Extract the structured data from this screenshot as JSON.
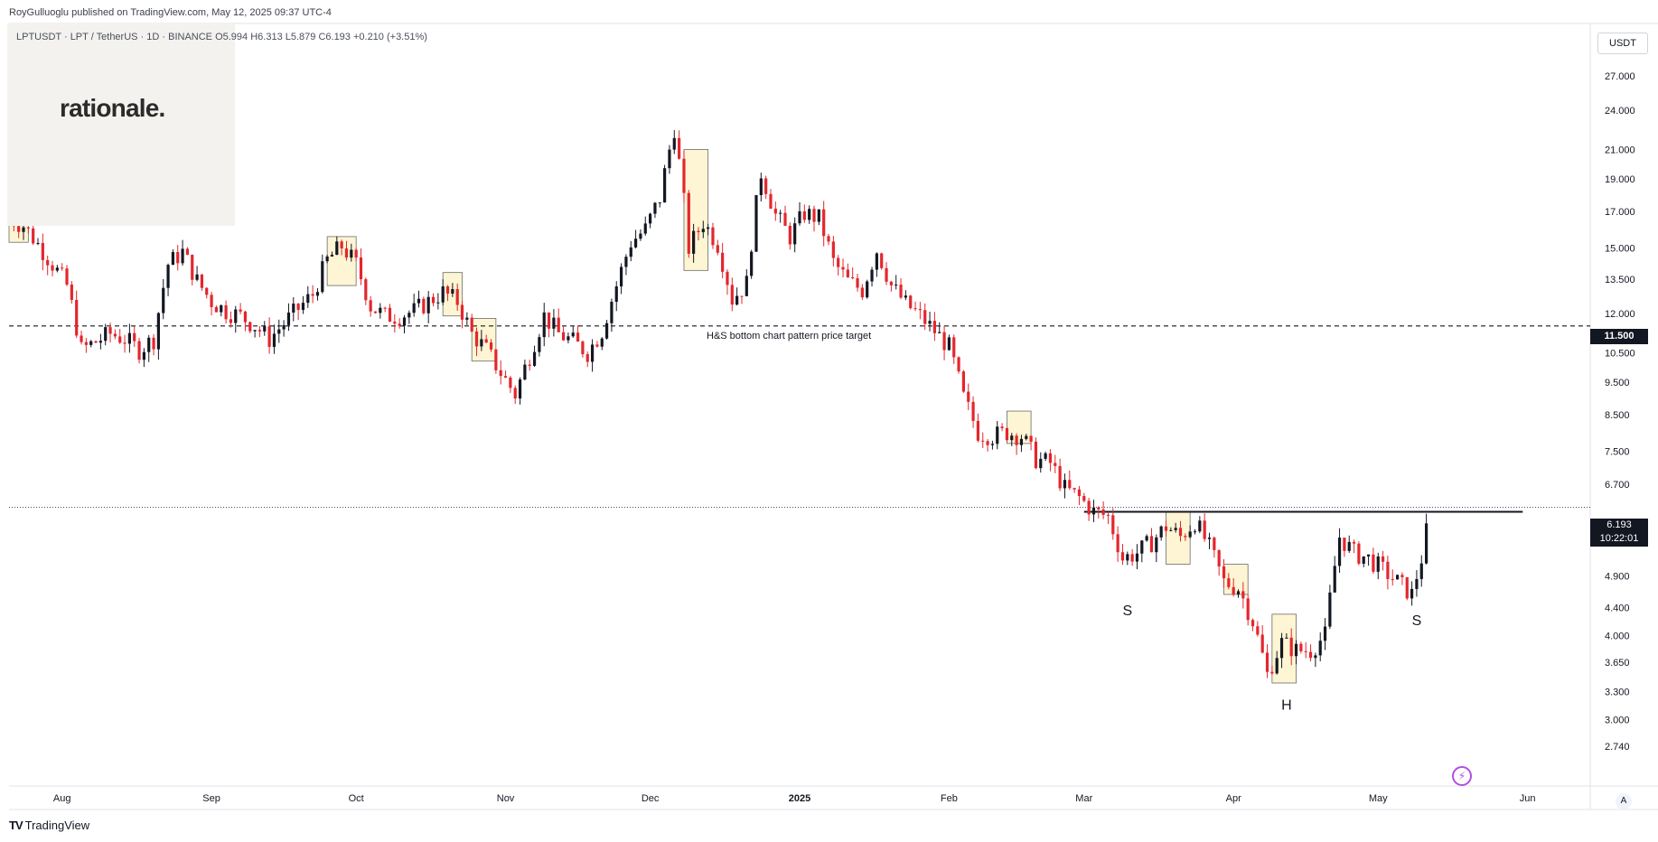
{
  "header": {
    "published_line": "RoyGulluoglu published on TradingView.com, May 12, 2025 09:37 UTC-4",
    "symbol": "LPTUSDT · LPT / TetherUS · 1D · BINANCE",
    "ohlc": "O5.994  H6.313  L5.879  C6.193  +0.210 (+3.51%)"
  },
  "watermark": {
    "logo_text": "rationale."
  },
  "scale": {
    "currency_label": "USDT",
    "settings_label": "A"
  },
  "footer": {
    "brand": "TradingView",
    "brand_mark": "TV"
  },
  "badges": {
    "last_price": "6.193",
    "countdown": "10:22:01",
    "target_price": "11.500"
  },
  "colors": {
    "up": "#131722",
    "down": "#e4262d",
    "highlight": "#fdf5d3",
    "grid_text": "#131722"
  },
  "chart_data": {
    "type": "candlestick",
    "title": "",
    "scale": "log",
    "ylim": [
      2.74,
      28.5
    ],
    "y_ticks": [
      "27.000",
      "24.000",
      "21.000",
      "19.000",
      "17.000",
      "15.000",
      "13.500",
      "12.000",
      "10.500",
      "9.500",
      "8.500",
      "7.500",
      "6.700",
      "5.500",
      "4.900",
      "4.400",
      "4.000",
      "3.650",
      "3.300",
      "3.000",
      "2.740"
    ],
    "x_ticks": [
      "Aug",
      "Sep",
      "Oct",
      "Nov",
      "Dec",
      "2025",
      "Feb",
      "Mar",
      "Apr",
      "May",
      "Jun"
    ],
    "x_tick_dates": [
      "2024-08-01",
      "2024-09-01",
      "2024-10-01",
      "2024-11-01",
      "2024-12-01",
      "2025-01-01",
      "2025-02-01",
      "2025-03-01",
      "2025-04-01",
      "2025-05-01",
      "2025-06-01"
    ],
    "x_start": "2024-07-21",
    "x_end": "2025-06-14",
    "series": [
      {
        "label": "Daily close",
        "points": [
          [
            "2024-07-21",
            16.6
          ],
          [
            "2024-07-24",
            16.2
          ],
          [
            "2024-07-27",
            15.2
          ],
          [
            "2024-07-30",
            14.2
          ],
          [
            "2024-08-02",
            13.2
          ],
          [
            "2024-08-05",
            10.6
          ],
          [
            "2024-08-08",
            10.9
          ],
          [
            "2024-08-11",
            11.2
          ],
          [
            "2024-08-14",
            11.0
          ],
          [
            "2024-08-17",
            10.6
          ],
          [
            "2024-08-20",
            11.0
          ],
          [
            "2024-08-23",
            14.2
          ],
          [
            "2024-08-26",
            14.8
          ],
          [
            "2024-08-29",
            13.4
          ],
          [
            "2024-09-01",
            12.5
          ],
          [
            "2024-09-04",
            12.1
          ],
          [
            "2024-09-07",
            11.9
          ],
          [
            "2024-09-10",
            11.5
          ],
          [
            "2024-09-13",
            11.0
          ],
          [
            "2024-09-16",
            11.6
          ],
          [
            "2024-09-19",
            12.2
          ],
          [
            "2024-09-22",
            12.8
          ],
          [
            "2024-09-25",
            14.4
          ],
          [
            "2024-09-28",
            15.1
          ],
          [
            "2024-10-01",
            14.2
          ],
          [
            "2024-10-04",
            12.3
          ],
          [
            "2024-10-07",
            11.9
          ],
          [
            "2024-10-10",
            11.9
          ],
          [
            "2024-10-13",
            12.1
          ],
          [
            "2024-10-16",
            12.5
          ],
          [
            "2024-10-19",
            12.9
          ],
          [
            "2024-10-22",
            12.5
          ],
          [
            "2024-10-25",
            11.2
          ],
          [
            "2024-10-28",
            10.6
          ],
          [
            "2024-10-31",
            9.8
          ],
          [
            "2024-11-03",
            9.1
          ],
          [
            "2024-11-06",
            10.4
          ],
          [
            "2024-11-09",
            11.9
          ],
          [
            "2024-11-12",
            11.2
          ],
          [
            "2024-11-15",
            10.9
          ],
          [
            "2024-11-18",
            10.5
          ],
          [
            "2024-11-21",
            11.3
          ],
          [
            "2024-11-24",
            13.2
          ],
          [
            "2024-11-27",
            15.3
          ],
          [
            "2024-11-30",
            16.0
          ],
          [
            "2024-12-03",
            17.8
          ],
          [
            "2024-12-06",
            22.6
          ],
          [
            "2024-12-09",
            15.0
          ],
          [
            "2024-12-12",
            16.4
          ],
          [
            "2024-12-15",
            15.2
          ],
          [
            "2024-12-18",
            12.6
          ],
          [
            "2024-12-21",
            13.3
          ],
          [
            "2024-12-24",
            19.4
          ],
          [
            "2024-12-27",
            16.8
          ],
          [
            "2024-12-30",
            15.6
          ],
          [
            "2025-01-02",
            16.9
          ],
          [
            "2025-01-05",
            16.6
          ],
          [
            "2025-01-08",
            14.3
          ],
          [
            "2025-01-11",
            13.4
          ],
          [
            "2025-01-14",
            13.0
          ],
          [
            "2025-01-17",
            14.9
          ],
          [
            "2025-01-20",
            13.2
          ],
          [
            "2025-01-23",
            12.4
          ],
          [
            "2025-01-26",
            11.9
          ],
          [
            "2025-01-29",
            11.3
          ],
          [
            "2025-02-01",
            10.7
          ],
          [
            "2025-02-04",
            9.0
          ],
          [
            "2025-02-07",
            8.0
          ],
          [
            "2025-02-10",
            7.9
          ],
          [
            "2025-02-13",
            8.0
          ],
          [
            "2025-02-16",
            7.9
          ],
          [
            "2025-02-19",
            7.3
          ],
          [
            "2025-02-22",
            7.2
          ],
          [
            "2025-02-25",
            6.6
          ],
          [
            "2025-02-28",
            6.4
          ],
          [
            "2025-03-03",
            6.1
          ],
          [
            "2025-03-06",
            6.0
          ],
          [
            "2025-03-09",
            5.2
          ],
          [
            "2025-03-12",
            5.3
          ],
          [
            "2025-03-15",
            5.5
          ],
          [
            "2025-03-18",
            5.8
          ],
          [
            "2025-03-21",
            5.6
          ],
          [
            "2025-03-24",
            5.9
          ],
          [
            "2025-03-27",
            5.4
          ],
          [
            "2025-03-30",
            4.8
          ],
          [
            "2025-04-02",
            4.7
          ],
          [
            "2025-04-05",
            4.2
          ],
          [
            "2025-04-08",
            3.5
          ],
          [
            "2025-04-11",
            3.9
          ],
          [
            "2025-04-14",
            3.8
          ],
          [
            "2025-04-17",
            3.8
          ],
          [
            "2025-04-20",
            4.0
          ],
          [
            "2025-04-23",
            5.6
          ],
          [
            "2025-04-26",
            5.3
          ],
          [
            "2025-04-29",
            5.2
          ],
          [
            "2025-05-02",
            5.0
          ],
          [
            "2025-05-05",
            4.8
          ],
          [
            "2025-05-08",
            4.6
          ],
          [
            "2025-05-10",
            5.2
          ],
          [
            "2025-05-12",
            6.19
          ]
        ]
      }
    ],
    "annotations": [
      {
        "text": "H&S bottom chart pattern price target",
        "value": 11.5
      },
      {
        "text": "S",
        "date": "2025-03-10",
        "value": 4.5
      },
      {
        "text": "H",
        "date": "2025-04-12",
        "value": 3.26
      },
      {
        "text": "S",
        "date": "2025-05-09",
        "value": 4.35
      }
    ],
    "neckline": {
      "from": "2025-03-01",
      "to": "2025-05-31",
      "value": 6.1
    },
    "highlight_zones": [
      {
        "from": "2024-07-21",
        "to": "2024-07-25",
        "low": 15.3,
        "high": 17.6
      },
      {
        "from": "2024-09-25",
        "to": "2024-10-01",
        "low": 13.2,
        "high": 15.6
      },
      {
        "from": "2024-10-19",
        "to": "2024-10-23",
        "low": 11.9,
        "high": 13.8
      },
      {
        "from": "2024-10-25",
        "to": "2024-10-30",
        "low": 10.2,
        "high": 11.8
      },
      {
        "from": "2024-12-08",
        "to": "2024-12-13",
        "low": 13.9,
        "high": 21.0
      },
      {
        "from": "2025-02-13",
        "to": "2025-02-18",
        "low": 7.7,
        "high": 8.6
      },
      {
        "from": "2025-03-18",
        "to": "2025-03-23",
        "low": 5.1,
        "high": 6.1
      },
      {
        "from": "2025-03-30",
        "to": "2025-04-04",
        "low": 4.6,
        "high": 5.1
      },
      {
        "from": "2025-04-09",
        "to": "2025-04-14",
        "low": 3.4,
        "high": 4.3
      }
    ]
  }
}
